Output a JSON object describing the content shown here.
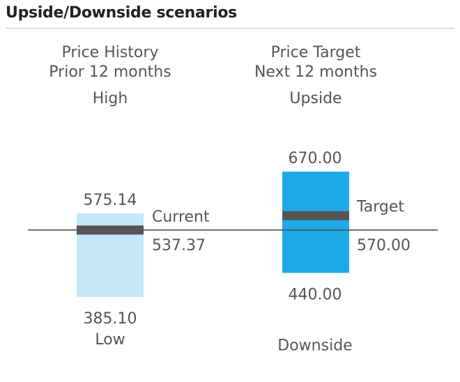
{
  "title": "Upside/Downside scenarios",
  "chart_data": {
    "type": "range-bar",
    "title": "Upside/Downside scenarios",
    "history": {
      "heading_line1": "Price History",
      "heading_line2": "Prior 12 months",
      "top_label": "High",
      "bottom_label": "Low",
      "marker_label": "Current",
      "high": 575.14,
      "low": 385.1,
      "current": 537.37,
      "high_text": "575.14",
      "low_text": "385.10",
      "current_text": "537.37",
      "color": "#c5e8f9"
    },
    "target": {
      "heading_line1": "Price Target",
      "heading_line2": "Next 12 months",
      "top_label": "Upside",
      "bottom_label": "Downside",
      "marker_label": "Target",
      "upside": 670.0,
      "downside": 440.0,
      "target": 570.0,
      "upside_text": "670.00",
      "downside_text": "440.00",
      "target_text": "570.00",
      "color": "#1eaae9"
    },
    "marker_color": "#555555",
    "baseline_color": "#444444"
  }
}
